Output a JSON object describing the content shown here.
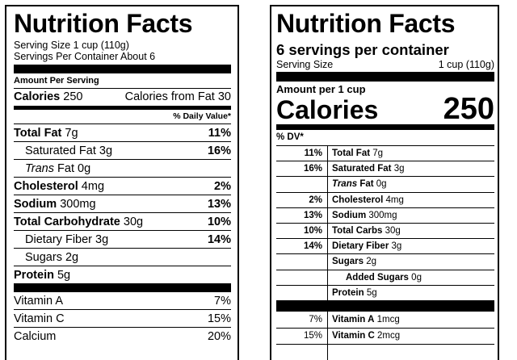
{
  "left_label": {
    "title": "Nutrition Facts",
    "serving_size": "Serving Size 1 cup (110g)",
    "servings_per_container": "Servings Per Container About 6",
    "amount_per_serving": "Amount Per Serving",
    "calories_label": "Calories",
    "calories_value": "250",
    "calories_from_fat": "Calories from Fat 30",
    "daily_value_header": "% Daily Value*",
    "rows": [
      {
        "name": "Total Fat",
        "amount": "7g",
        "dv": "11%"
      },
      {
        "name": "Saturated Fat",
        "amount": "3g",
        "dv": "16%"
      },
      {
        "name_italic": "Trans",
        "name": "Fat",
        "amount": "0g",
        "dv": ""
      },
      {
        "name": "Cholesterol",
        "amount": "4mg",
        "dv": "2%"
      },
      {
        "name": "Sodium",
        "amount": "300mg",
        "dv": "13%"
      },
      {
        "name": "Total Carbohydrate",
        "amount": "30g",
        "dv": "10%"
      },
      {
        "name": "Dietary Fiber",
        "amount": "3g",
        "dv": "14%"
      },
      {
        "name": "Sugars",
        "amount": "2g",
        "dv": ""
      },
      {
        "name": "Protein",
        "amount": "5g",
        "dv": ""
      }
    ],
    "vitamins": [
      {
        "name": "Vitamin A",
        "dv": "7%"
      },
      {
        "name": "Vitamin C",
        "dv": "15%"
      },
      {
        "name": "Calcium",
        "dv": "20%"
      }
    ]
  },
  "right_label": {
    "title": "Nutrition Facts",
    "servings_per_container": "6 servings per container",
    "serving_size_label": "Serving Size",
    "serving_size_value": "1 cup (110g)",
    "amount_per": "Amount per 1 cup",
    "calories_label": "Calories",
    "calories_value": "250",
    "dv_header": "% DV*",
    "rows": [
      {
        "dv": "11%",
        "name": "Total Fat",
        "amount": "7g"
      },
      {
        "dv": "16%",
        "name": "Saturated Fat",
        "amount": "3g"
      },
      {
        "dv": "",
        "name_italic": "Trans",
        "name": "Fat",
        "amount": "0g"
      },
      {
        "dv": "2%",
        "name": "Cholesterol",
        "amount": "4mg"
      },
      {
        "dv": "13%",
        "name": "Sodium",
        "amount": "300mg"
      },
      {
        "dv": "10%",
        "name": "Total Carbs",
        "amount": "30g"
      },
      {
        "dv": "14%",
        "name": "Dietary Fiber",
        "amount": "3g"
      },
      {
        "dv": "",
        "name": "Sugars",
        "amount": "2g"
      },
      {
        "dv": "",
        "name": "Added Sugars",
        "amount": "0g"
      },
      {
        "dv": "",
        "name": "Protein",
        "amount": "5g"
      }
    ],
    "vitamins": [
      {
        "dv": "7%",
        "name": "Vitamin A",
        "amount": "1mcg"
      },
      {
        "dv": "15%",
        "name": "Vitamin C",
        "amount": "2mcg"
      }
    ]
  }
}
